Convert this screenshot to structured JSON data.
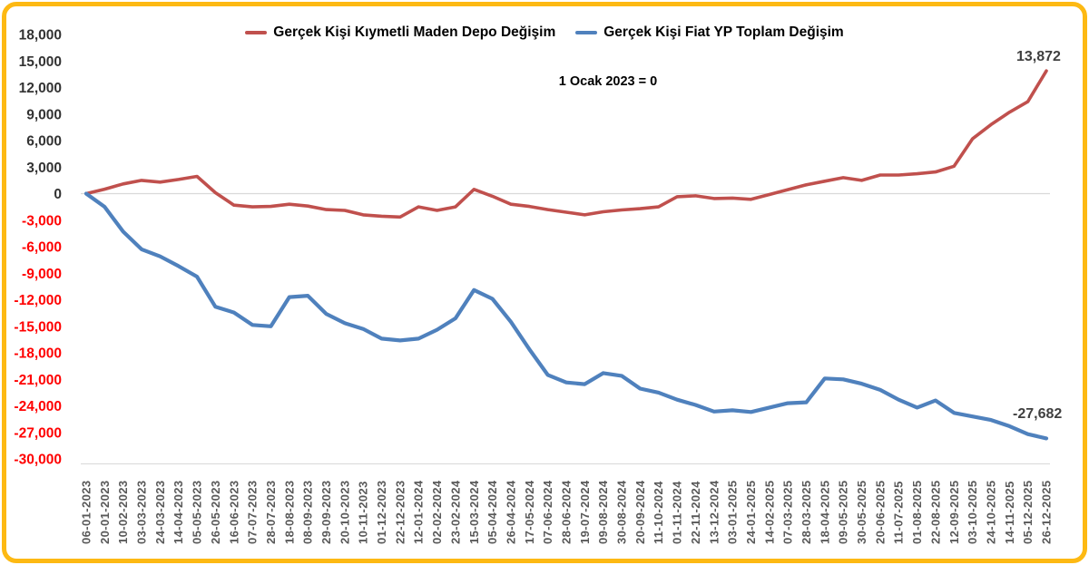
{
  "chart_data": {
    "type": "line",
    "title": "",
    "annotation": "1 Ocak 2023 = 0",
    "xlabel": "",
    "ylabel": "",
    "ylim": [
      -30000,
      18000
    ],
    "ytick_step": 3000,
    "grid": "zero-line-only",
    "legend_position": "top-center",
    "xtick_rotation": 90,
    "x": [
      "06-01-2023",
      "20-01-2023",
      "10-02-2023",
      "03-03-2023",
      "24-03-2023",
      "14-04-2023",
      "05-05-2023",
      "26-05-2023",
      "16-06-2023",
      "07-07-2023",
      "28-07-2023",
      "18-08-2023",
      "08-09-2023",
      "29-09-2023",
      "20-10-2023",
      "10-11-2023",
      "01-12-2023",
      "22-12-2023",
      "12-01-2024",
      "02-02-2024",
      "23-02-2024",
      "15-03-2024",
      "05-04-2024",
      "26-04-2024",
      "17-05-2024",
      "07-06-2024",
      "28-06-2024",
      "19-07-2024",
      "09-08-2024",
      "30-08-2024",
      "20-09-2024",
      "11-10-2024",
      "01-11-2024",
      "22-11-2024",
      "13-12-2024",
      "03-01-2025",
      "24-01-2025",
      "14-02-2025",
      "07-03-2025",
      "28-03-2025",
      "18-04-2025",
      "09-05-2025",
      "30-05-2025",
      "20-06-2025",
      "11-07-2025",
      "01-08-2025",
      "22-08-2025",
      "12-09-2025",
      "03-10-2025",
      "24-10-2025",
      "14-11-2025",
      "05-12-2025",
      "26-12-2025"
    ],
    "series": [
      {
        "name": "Gerçek Kişi Kıymetli Maden Depo Değişim",
        "color": "#C0504D",
        "end_label": "13,872",
        "end_value": 13872,
        "values": [
          0,
          500,
          1100,
          1500,
          1300,
          1600,
          1950,
          100,
          -1300,
          -1500,
          -1450,
          -1200,
          -1400,
          -1800,
          -1900,
          -2400,
          -2550,
          -2650,
          -1500,
          -1900,
          -1500,
          480,
          -300,
          -1200,
          -1450,
          -1800,
          -2100,
          -2400,
          -2050,
          -1850,
          -1700,
          -1500,
          -350,
          -250,
          -550,
          -500,
          -650,
          -100,
          450,
          1000,
          1400,
          1800,
          1500,
          2100,
          2100,
          2250,
          2450,
          3100,
          6200,
          7800,
          9200,
          10400,
          13872
        ]
      },
      {
        "name": "Gerçek Kişi Fiat YP Toplam Değişim",
        "color": "#4F81BD",
        "end_label": "-27,682",
        "end_value": -27682,
        "values": [
          0,
          -1500,
          -4300,
          -6300,
          -7100,
          -8200,
          -9400,
          -12800,
          -13450,
          -14850,
          -15000,
          -11700,
          -11550,
          -13600,
          -14650,
          -15300,
          -16400,
          -16600,
          -16400,
          -15400,
          -14100,
          -10900,
          -11900,
          -14500,
          -17600,
          -20500,
          -21350,
          -21550,
          -20300,
          -20600,
          -22050,
          -22500,
          -23300,
          -23900,
          -24650,
          -24500,
          -24700,
          -24200,
          -23700,
          -23600,
          -20900,
          -21000,
          -21500,
          -22200,
          -23300,
          -24200,
          -23400,
          -24800,
          -25200,
          -25600,
          -26300,
          -27200,
          -27682
        ]
      }
    ],
    "colors": {
      "ytick_positive": "#333333",
      "ytick_negative": "#FF0000",
      "xtick": "#595959",
      "zero_line": "#D9D9D9",
      "axis_line": "#D9D9D9",
      "frame_border": "#FDB913",
      "data_label": "#3F3F3F",
      "background": "#FFFFFF"
    }
  }
}
